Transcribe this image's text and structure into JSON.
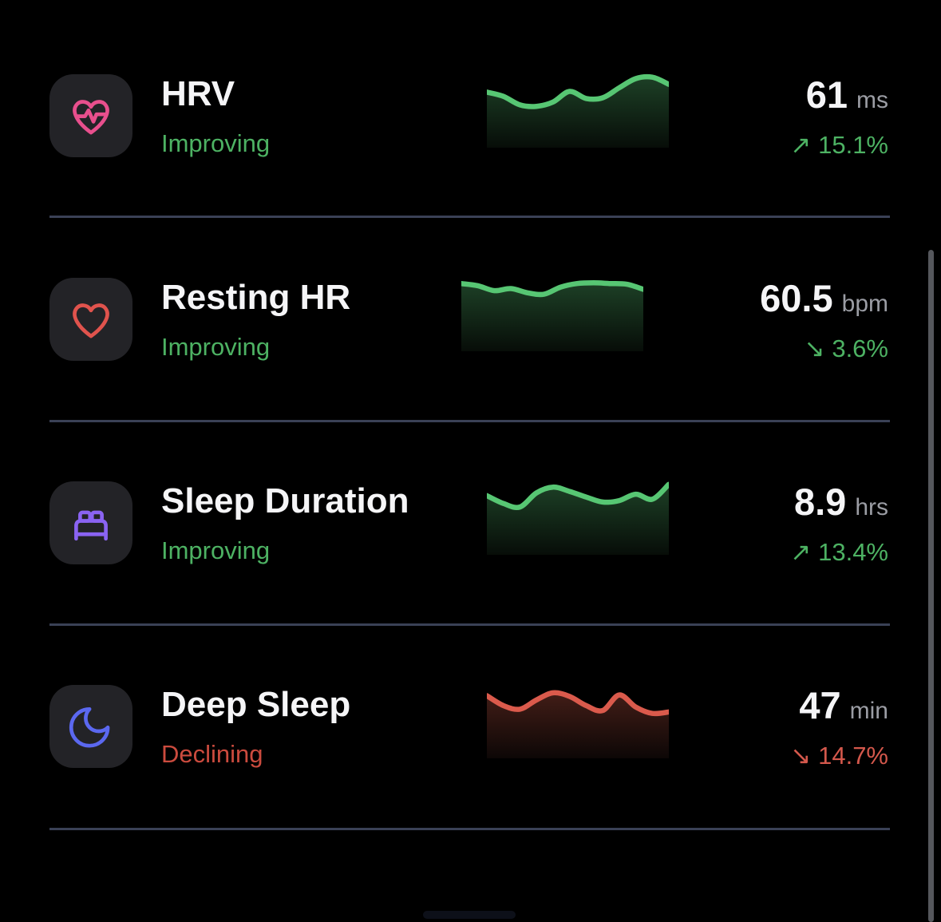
{
  "ui": {
    "background": "#000000",
    "tile_color": "#232327",
    "title_color": "#f5f5f7",
    "unit_color": "#9b9da4",
    "divider_color": "#3a4156",
    "scrollbar_color": "#55575c",
    "arrow_up": "↗",
    "arrow_down": "↘"
  },
  "metrics": [
    {
      "title": "HRV",
      "status": "Improving",
      "status_color": "#4db263",
      "icon": "heart-pulse-icon",
      "icon_color": "#e84f8d",
      "value": "61",
      "unit": "ms",
      "change": "15.1%",
      "change_direction": "up",
      "change_color": "#4db263",
      "line_color": "#57c673",
      "fill_top": "#1d4026",
      "fill_bottom": "#070d08",
      "spark": [
        0.76,
        0.7,
        0.58,
        0.56,
        0.62,
        0.77,
        0.67,
        0.68,
        0.82,
        0.95,
        0.97,
        0.87
      ]
    },
    {
      "title": "Resting HR",
      "status": "Improving",
      "status_color": "#4db263",
      "icon": "heart-icon",
      "icon_color": "#e0534d",
      "value": "60.5",
      "unit": "bpm",
      "change": "3.6%",
      "change_direction": "down",
      "change_color": "#4db263",
      "line_color": "#57c673",
      "fill_top": "#1d4026",
      "fill_bottom": "#070d08",
      "spark": [
        0.93,
        0.9,
        0.83,
        0.86,
        0.8,
        0.78,
        0.88,
        0.93,
        0.94,
        0.93,
        0.92,
        0.85
      ]
    },
    {
      "title": "Sleep Duration",
      "status": "Improving",
      "status_color": "#4db263",
      "icon": "bed-icon",
      "icon_color": "#8a63f2",
      "value": "8.9",
      "unit": "hrs",
      "change": "13.4%",
      "change_direction": "up",
      "change_color": "#4db263",
      "line_color": "#57c673",
      "fill_top": "#1d4026",
      "fill_bottom": "#070d08",
      "spark": [
        0.81,
        0.7,
        0.65,
        0.85,
        0.93,
        0.87,
        0.79,
        0.72,
        0.74,
        0.83,
        0.76,
        0.97
      ]
    },
    {
      "title": "Deep Sleep",
      "status": "Declining",
      "status_color": "#cb4b3e",
      "icon": "moon-icon",
      "icon_color": "#5b68f0",
      "value": "47",
      "unit": "min",
      "change": "14.7%",
      "change_direction": "down",
      "change_color": "#d4584c",
      "line_color": "#da5a4c",
      "fill_top": "#421d17",
      "fill_bottom": "#0d0706",
      "spark": [
        0.86,
        0.72,
        0.67,
        0.8,
        0.9,
        0.85,
        0.72,
        0.65,
        0.87,
        0.7,
        0.61,
        0.63
      ]
    }
  ]
}
